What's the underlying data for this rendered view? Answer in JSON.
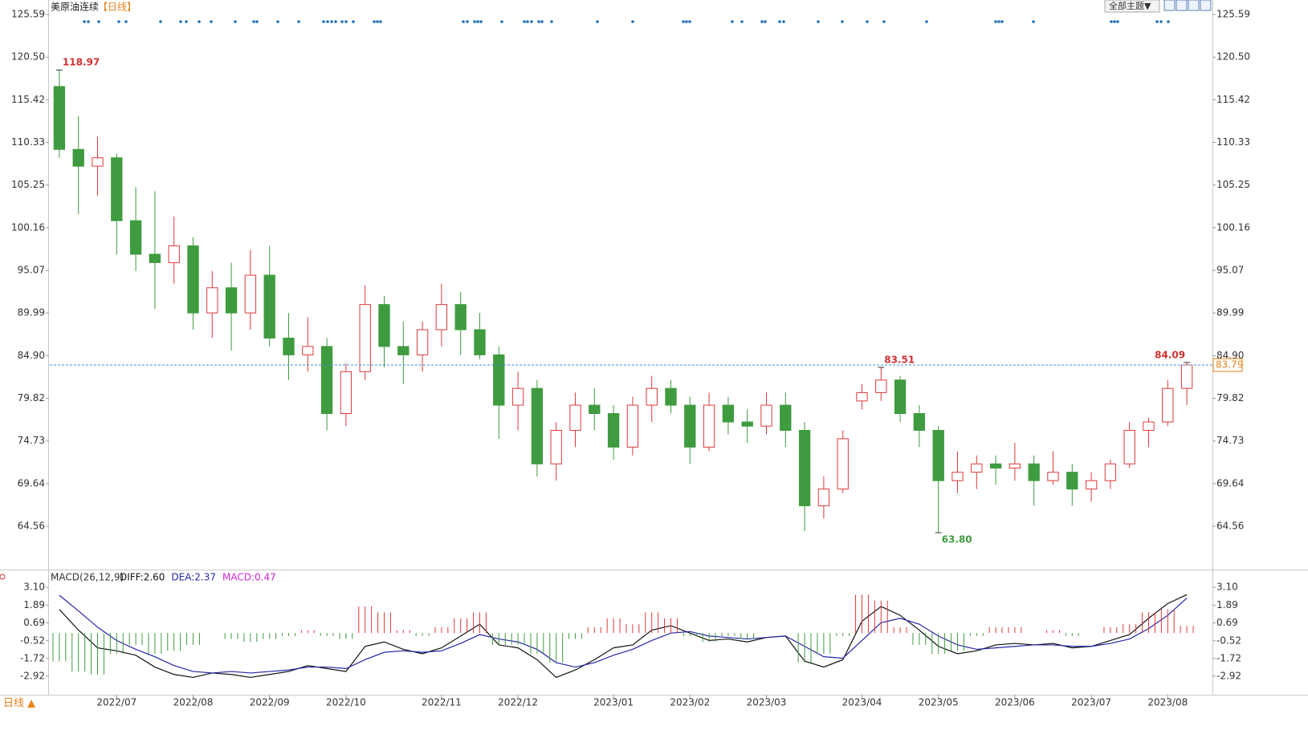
{
  "header": {
    "symbol": "美原油连续",
    "period": "【日线】",
    "theme_button": "全部主题▼"
  },
  "footer_period": "日线 ▲",
  "chart_data": [
    {
      "type": "candlestick",
      "categories": [
        null,
        null,
        null,
        "2022/07",
        null,
        null,
        null,
        "2022/08",
        null,
        null,
        null,
        "2022/09",
        null,
        null,
        null,
        "2022/10",
        null,
        null,
        null,
        null,
        "2022/11",
        null,
        null,
        null,
        "2022/12",
        null,
        null,
        null,
        null,
        "2023/01",
        null,
        null,
        null,
        "2023/02",
        null,
        null,
        null,
        "2023/03",
        null,
        null,
        null,
        null,
        "2023/04",
        null,
        null,
        null,
        "2023/05",
        null,
        null,
        null,
        "2023/06",
        null,
        null,
        null,
        "2023/07",
        null,
        null,
        null,
        "2023/08",
        null
      ],
      "open": [
        117,
        109.5,
        107.5,
        108.5,
        101,
        97,
        96,
        98,
        90,
        93,
        90,
        94.5,
        87,
        85,
        86,
        78,
        83,
        91,
        86,
        85,
        88,
        91,
        88,
        85,
        79,
        81,
        72,
        76,
        79,
        78,
        74,
        79,
        81,
        79,
        74,
        79,
        77,
        76.5,
        79,
        76,
        67,
        69,
        79.5,
        80.5,
        82,
        78,
        76,
        70,
        71,
        72,
        71.5,
        72,
        70,
        71,
        69,
        70,
        72,
        76,
        77,
        81
      ],
      "high": [
        118.97,
        113.5,
        111,
        109,
        105,
        104.5,
        101.5,
        99,
        95,
        96,
        97.5,
        98,
        90,
        89.5,
        87,
        84,
        93.3,
        92,
        89,
        89,
        93.5,
        92.5,
        90,
        86,
        83,
        82,
        77,
        80.5,
        81,
        79,
        80,
        82.5,
        82,
        80,
        80.5,
        80,
        78.5,
        80.5,
        80.5,
        77,
        70.5,
        76,
        81.5,
        83.51,
        82.5,
        79,
        76.5,
        73.5,
        73,
        73,
        74.5,
        73,
        73.5,
        72,
        71,
        72.5,
        77,
        77.5,
        82,
        84.09
      ],
      "low": [
        108.5,
        101.8,
        104,
        97,
        95,
        90.5,
        93.5,
        88,
        87,
        85.5,
        88,
        86,
        82,
        83,
        76,
        76.5,
        82,
        83.5,
        81.5,
        83,
        86,
        85,
        84.5,
        75,
        76,
        70.5,
        70,
        74,
        76,
        72.5,
        73,
        77,
        78,
        72,
        73.5,
        75.5,
        74.5,
        75.5,
        74,
        64,
        65.5,
        68.5,
        78.5,
        79.5,
        77,
        74,
        63.8,
        68.5,
        69,
        69.5,
        70,
        67,
        69.5,
        67,
        67.5,
        69,
        71.5,
        74,
        76.5,
        79
      ],
      "close": [
        109.5,
        107.5,
        108.5,
        101,
        97,
        96,
        98,
        90,
        93,
        90,
        94.5,
        87,
        85,
        86,
        78,
        83,
        91,
        86,
        85,
        88,
        91,
        88,
        85,
        79,
        81,
        72,
        76,
        79,
        78,
        74,
        79,
        81,
        79,
        74,
        79,
        77,
        76.5,
        79,
        76,
        67,
        69,
        75,
        80.5,
        82,
        78,
        76,
        70,
        71,
        72,
        71.5,
        72,
        70,
        71,
        69,
        70,
        72,
        76,
        77,
        81,
        83.79
      ],
      "up_color": "#e0393a",
      "down_color": "#3f9b3f",
      "ylim": [
        59.59,
        126.55
      ],
      "yticks": [
        125.59,
        {
          "value": 120.5,
          "label": "120.50"
        },
        115.42,
        110.33,
        105.25,
        100.16,
        95.07,
        89.99,
        {
          "value": 84.9,
          "label": "84.90"
        },
        79.82,
        74.73,
        69.64,
        64.56
      ],
      "high_marks": [
        118.97,
        83.51,
        84.09
      ],
      "low_marks": [
        {
          "value": 63.8,
          "label": "63.80"
        }
      ],
      "last_price": 83.79,
      "grid": false
    },
    {
      "type": "macd",
      "title": "MACD(26,12,9)",
      "readout": [
        "DIFF:2.60",
        "DEA:2.37",
        "MACD:0.47"
      ],
      "series": [
        {
          "name": "DIFF",
          "color": "#111111",
          "values": [
            1.6,
            0.2,
            -1.0,
            -1.2,
            -1.5,
            -2.3,
            -2.8,
            -3.0,
            -2.7,
            -2.8,
            -3.0,
            -2.8,
            -2.6,
            -2.2,
            -2.4,
            -2.6,
            -0.9,
            -0.6,
            -1.1,
            -1.4,
            -1.0,
            -0.2,
            0.6,
            -0.8,
            -1.0,
            -1.8,
            -3.0,
            -2.5,
            -1.8,
            -1.0,
            -0.8,
            0.2,
            0.5,
            0.0,
            -0.5,
            -0.4,
            -0.6,
            -0.3,
            -0.2,
            -1.9,
            -2.3,
            -1.8,
            0.8,
            1.8,
            1.2,
            0.2,
            -0.9,
            -1.4,
            -1.2,
            -0.8,
            -0.7,
            -0.8,
            -0.7,
            -1.0,
            -0.9,
            -0.5,
            -0.1,
            1.0,
            2.0,
            2.6
          ]
        },
        {
          "name": "DEA",
          "color": "#2626a8",
          "values": [
            2.56,
            1.5,
            0.4,
            -0.5,
            -1.1,
            -1.6,
            -2.2,
            -2.6,
            -2.7,
            -2.6,
            -2.7,
            -2.6,
            -2.5,
            -2.3,
            -2.3,
            -2.4,
            -1.8,
            -1.3,
            -1.2,
            -1.3,
            -1.2,
            -0.7,
            -0.1,
            -0.4,
            -0.6,
            -1.1,
            -2.0,
            -2.3,
            -2.0,
            -1.5,
            -1.1,
            -0.5,
            0.0,
            0.1,
            -0.2,
            -0.3,
            -0.4,
            -0.3,
            -0.2,
            -0.9,
            -1.6,
            -1.7,
            -0.5,
            0.7,
            1.0,
            0.6,
            -0.2,
            -0.8,
            -1.1,
            -1.0,
            -0.9,
            -0.8,
            -0.8,
            -0.9,
            -0.9,
            -0.7,
            -0.4,
            0.3,
            1.2,
            2.37
          ]
        },
        {
          "name": "MACD",
          "color": "#d026d0",
          "values": [
            -1.92,
            -2.6,
            -2.8,
            -1.4,
            -0.8,
            -1.4,
            -1.2,
            -0.8,
            0,
            -0.4,
            -0.6,
            -0.4,
            -0.2,
            0.2,
            -0.2,
            -0.4,
            1.8,
            1.4,
            0.2,
            -0.2,
            0.4,
            1.0,
            1.4,
            -0.8,
            -0.8,
            -1.4,
            -2.0,
            -0.4,
            0.4,
            1.0,
            0.6,
            1.4,
            1.0,
            -0.2,
            -0.6,
            -0.2,
            -0.4,
            0,
            0,
            -2.0,
            -1.4,
            -0.2,
            2.6,
            2.2,
            0.4,
            -0.8,
            -1.4,
            -1.2,
            -0.2,
            0.4,
            0.4,
            0,
            0.2,
            -0.2,
            0,
            0.4,
            0.6,
            1.4,
            1.6,
            0.47
          ]
        }
      ],
      "up_color": "#e0393a",
      "down_color": "#3f9b3f",
      "ylim": [
        -4.17,
        3.43
      ],
      "yticks": [
        {
          "value": 3.1,
          "label": "3.10"
        },
        1.89,
        0.69,
        -0.52,
        -1.72,
        -2.92
      ]
    }
  ]
}
